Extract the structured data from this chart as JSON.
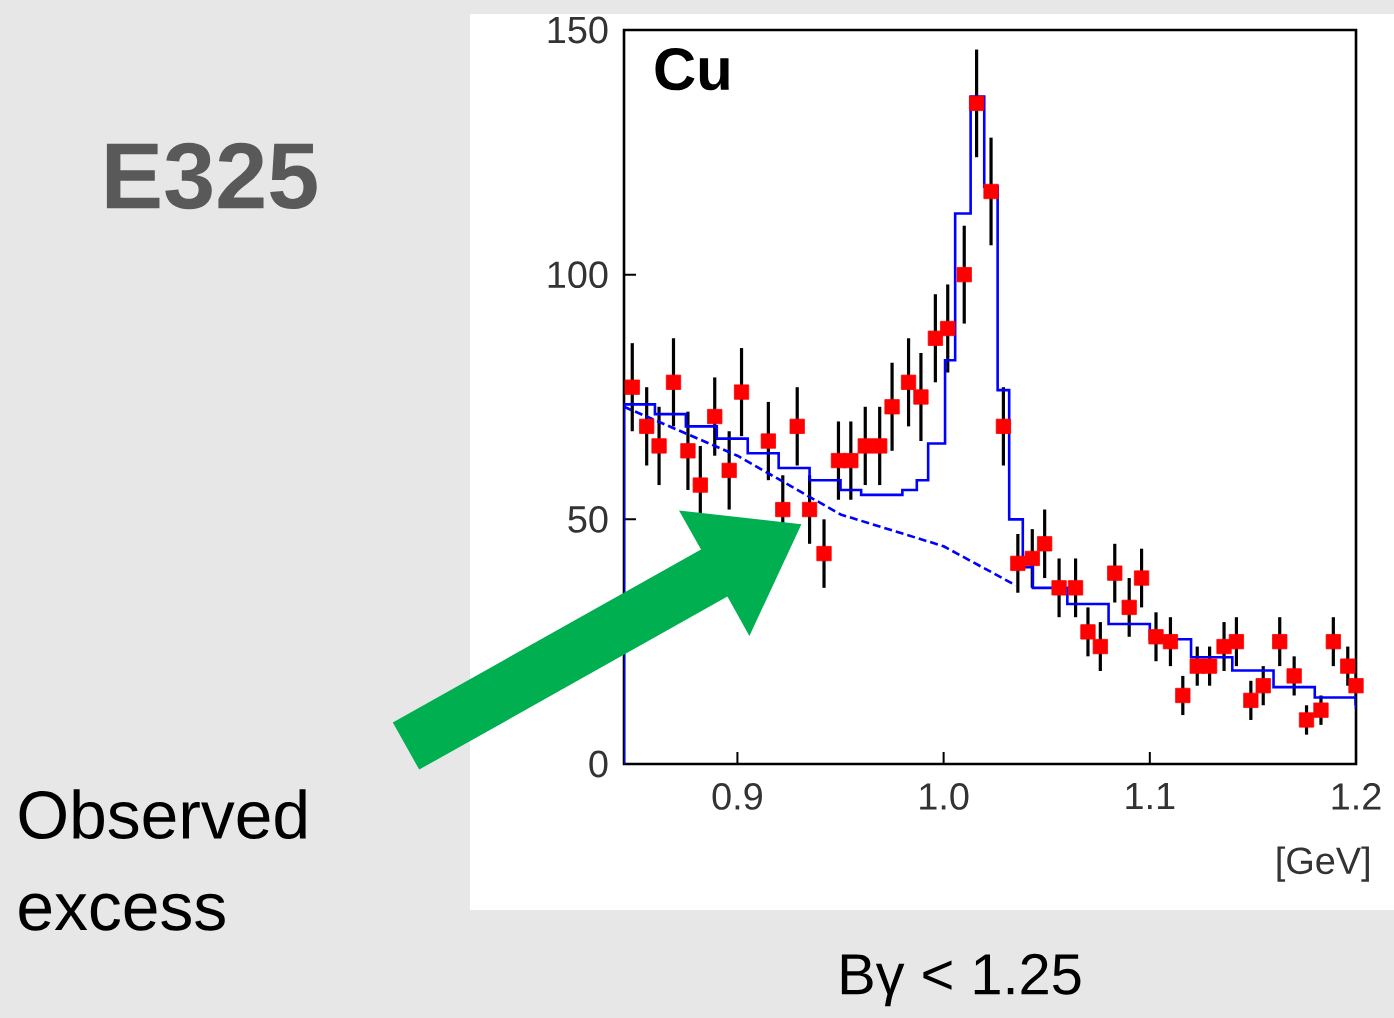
{
  "chart_data": {
    "type": "scatter",
    "title": "E325",
    "xlabel": "[GeV]",
    "xlim": [
      0.845,
      1.2
    ],
    "ylim": [
      0,
      150
    ],
    "xticks": [
      0.9,
      {
        "value": 1,
        "label": "1.0"
      },
      1.1,
      1.2
    ],
    "yticks": [
      0,
      50,
      100,
      150
    ],
    "annotations": [
      "Cu",
      "Observed excess",
      "Bγ < 1.25"
    ],
    "series": [
      {
        "color": "#ff0000",
        "marker": "square",
        "x": [
          0.849,
          0.856,
          0.862,
          0.869,
          0.876,
          0.882,
          0.889,
          0.896,
          0.902,
          0.909,
          0.915,
          0.922,
          0.929,
          0.935,
          0.942,
          0.949,
          0.955,
          0.962,
          0.969,
          0.975,
          0.983,
          0.989,
          0.996,
          1.002,
          1.01,
          1.016,
          1.023,
          1.029,
          1.036,
          1.043,
          1.049,
          1.056,
          1.064,
          1.07,
          1.076,
          1.083,
          1.09,
          1.096,
          1.103,
          1.11,
          1.116,
          1.123,
          1.129,
          1.136,
          1.142,
          1.149,
          1.155,
          1.163,
          1.17,
          1.176,
          1.183,
          1.189,
          1.196,
          1.2
        ],
        "values": [
          77,
          69,
          65,
          78,
          64,
          57,
          71,
          60,
          76,
          null,
          66,
          52,
          69,
          52,
          43,
          62,
          62,
          65,
          65,
          73,
          78,
          75,
          87,
          89,
          100,
          135,
          117,
          69,
          41,
          42,
          45,
          36,
          36,
          27,
          24,
          39,
          32,
          38,
          26,
          25,
          14,
          20,
          20,
          24,
          25,
          13,
          16,
          25,
          18,
          9,
          11,
          25,
          20,
          16
        ],
        "errors": [
          9,
          8,
          8,
          9,
          8,
          8,
          8,
          8,
          9,
          null,
          8,
          7,
          8,
          7,
          7,
          8,
          8,
          8,
          8,
          9,
          9,
          9,
          9,
          9,
          10,
          11,
          11,
          8,
          6,
          6,
          7,
          6,
          6,
          5,
          5,
          6,
          6,
          6,
          5,
          5,
          4,
          4,
          4,
          5,
          5,
          4,
          4,
          5,
          4,
          3,
          3,
          5,
          4,
          4
        ]
      },
      {
        "type": "step",
        "color": "#0000ff",
        "x": [
          0.845,
          0.845,
          0.86,
          0.875,
          0.89,
          0.905,
          0.92,
          0.935,
          0.95,
          0.96,
          0.972,
          0.98,
          0.987,
          0.9925,
          1.0007,
          1.0056,
          1.0131,
          1.0197,
          1.0262,
          1.0318,
          1.0384,
          1.0433,
          1.06,
          1.08,
          1.1,
          1.12,
          1.14,
          1.16,
          1.18,
          1.2
        ],
        "values": [
          0,
          73.5,
          71.5,
          69,
          66.5,
          63.5,
          60.5,
          58,
          56,
          55,
          55,
          56,
          58,
          65.5,
          82.5,
          112.5,
          136.4,
          118,
          76.4,
          50,
          40.2,
          36,
          32.7,
          28.6,
          25.5,
          21.8,
          19.1,
          15.7,
          13.6,
          11.3
        ]
      },
      {
        "type": "line",
        "color": "#0000ff",
        "line_style": "dashed",
        "x": [
          0.845,
          0.9,
          0.95,
          1.0,
          1.035
        ],
        "values": [
          73,
          63,
          51,
          44.5,
          36.5
        ]
      }
    ]
  }
}
